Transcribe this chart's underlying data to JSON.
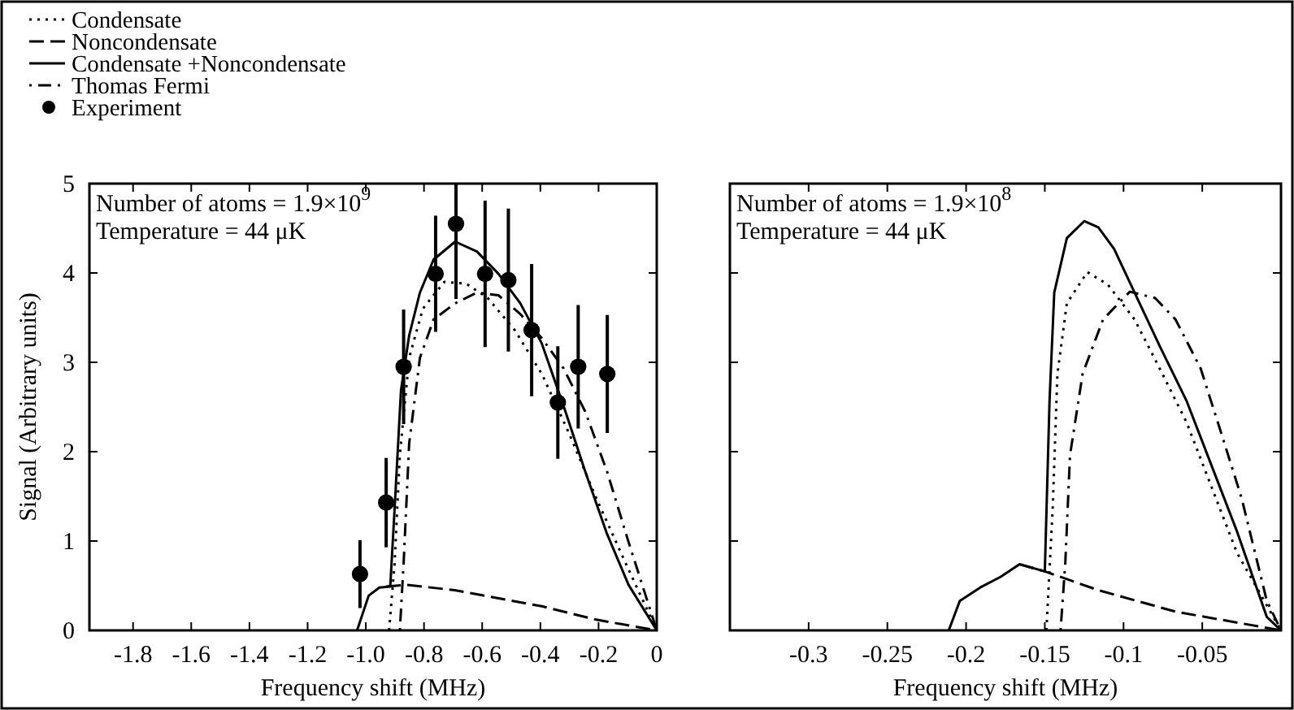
{
  "chart_data": [
    {
      "type": "line",
      "xlabel": "Frequency shift (MHz)",
      "ylabel": "Signal (Arbitrary units)",
      "xlim": [
        -1.95,
        0
      ],
      "ylim": [
        0,
        5
      ],
      "xticks": [
        -1.8,
        -1.6,
        -1.4,
        -1.2,
        {
          "value": -1,
          "label": "-1.0"
        },
        -0.8,
        -0.6,
        -0.4,
        -0.2,
        0
      ],
      "yticks": [
        0,
        1,
        2,
        3,
        4,
        5
      ],
      "legend": "top left",
      "annotations": [
        "Number of atoms = 1.9×10$^{9}$",
        "Temperature = 44 μK"
      ],
      "series": [
        {
          "name": "Condensate",
          "color": "#000000",
          "line_style": "dotted",
          "x": [
            -0.92,
            -0.901,
            -0.883,
            -0.851,
            -0.804,
            -0.73,
            -0.655,
            -0.581,
            -0.488,
            -0.395,
            -0.302,
            -0.208,
            -0.115,
            0
          ],
          "values": [
            0,
            0.75,
            1.96,
            3.05,
            3.6,
            3.9,
            3.88,
            3.72,
            3.36,
            2.87,
            2.21,
            1.48,
            0.81,
            0
          ]
        },
        {
          "name": "Noncondensate",
          "color": "#000000",
          "line_style": "dashed",
          "x": [
            -0.93,
            -0.86,
            -0.695,
            -0.395,
            -0.208,
            0
          ],
          "values": [
            0.49,
            0.51,
            0.45,
            0.27,
            0.12,
            0
          ]
        },
        {
          "name": "Condensate +Noncondensate",
          "color": "#000000",
          "line_style": "solid",
          "x": [
            -1.03,
            -0.99,
            -0.953,
            -0.916,
            -0.901,
            -0.879,
            -0.851,
            -0.814,
            -0.767,
            -0.693,
            -0.618,
            -0.544,
            -0.469,
            -0.395,
            -0.32,
            -0.246,
            -0.171,
            -0.097,
            0
          ],
          "values": [
            0,
            0.39,
            0.48,
            0.49,
            1.36,
            2.69,
            3.3,
            3.78,
            4.15,
            4.35,
            4.24,
            3.99,
            3.66,
            3.21,
            2.51,
            1.78,
            1.08,
            0.51,
            0
          ]
        },
        {
          "name": "Thomas Fermi",
          "color": "#000000",
          "line_style": "dashdot",
          "x": [
            -0.883,
            -0.87,
            -0.851,
            -0.814,
            -0.767,
            -0.693,
            -0.618,
            -0.544,
            -0.469,
            -0.395,
            -0.32,
            -0.246,
            -0.171,
            -0.097,
            0
          ],
          "values": [
            0,
            0.75,
            2.09,
            3.05,
            3.48,
            3.66,
            3.78,
            3.75,
            3.54,
            3.27,
            2.93,
            2.45,
            1.78,
            0.99,
            0
          ]
        },
        {
          "name": "Experiment",
          "type": "scatter",
          "marker": "circle",
          "color": "#000000",
          "x": [
            -1.02,
            -0.93,
            -0.87,
            -0.76,
            -0.69,
            -0.59,
            -0.51,
            -0.43,
            -0.34,
            -0.27,
            -0.17
          ],
          "values": [
            0.63,
            1.43,
            2.95,
            3.99,
            4.55,
            3.99,
            3.92,
            3.36,
            2.55,
            2.95,
            2.87
          ],
          "errors": [
            0.38,
            0.5,
            0.64,
            0.65,
            [
              3.71,
              5
            ],
            0.82,
            0.8,
            0.74,
            0.63,
            0.69,
            0.66
          ]
        }
      ]
    },
    {
      "type": "line",
      "xlabel": "Frequency shift (MHz)",
      "xlim": [
        -0.35,
        0
      ],
      "ylim": [
        0,
        5
      ],
      "xticks": [
        -0.3,
        -0.25,
        -0.2,
        -0.15,
        -0.1,
        -0.05
      ],
      "yticks": [
        0,
        1,
        2,
        3,
        4,
        5
      ],
      "tick_labels": "x",
      "annotations": [
        "Number of atoms = 1.9×10$^{8}$",
        "Temperature = 44 μK"
      ],
      "series": [
        {
          "color": "#000000",
          "line_style": "dotted",
          "x": [
            -0.149,
            -0.145,
            -0.142,
            -0.136,
            -0.123,
            -0.11,
            -0.093,
            -0.077,
            -0.06,
            -0.044,
            -0.028,
            0
          ],
          "values": [
            0,
            1.36,
            2.87,
            3.66,
            4.01,
            3.87,
            3.48,
            2.93,
            2.33,
            1.6,
            0.87,
            0
          ]
        },
        {
          "color": "#000000",
          "line_style": "dashed",
          "x": [
            -0.166,
            -0.15,
            -0.116,
            -0.067,
            0
          ],
          "values": [
            0.74,
            0.66,
            0.45,
            0.21,
            0
          ]
        },
        {
          "color": "#000000",
          "line_style": "solid",
          "x": [
            -0.211,
            -0.204,
            -0.191,
            -0.178,
            -0.166,
            -0.15,
            -0.147,
            -0.144,
            -0.136,
            -0.125,
            -0.116,
            -0.106,
            -0.093,
            -0.077,
            -0.06,
            -0.044,
            -0.028,
            -0.009,
            0
          ],
          "values": [
            0,
            0.33,
            0.48,
            0.6,
            0.74,
            0.66,
            2.57,
            3.78,
            4.39,
            4.58,
            4.51,
            4.27,
            3.78,
            3.18,
            2.57,
            1.84,
            1.11,
            0.15,
            0
          ]
        },
        {
          "color": "#000000",
          "line_style": "dashdot",
          "x": [
            -0.14,
            -0.137,
            -0.134,
            -0.126,
            -0.113,
            -0.096,
            -0.08,
            -0.067,
            -0.051,
            -0.038,
            -0.025,
            -0.009,
            0
          ],
          "values": [
            0,
            0.75,
            1.96,
            2.87,
            3.48,
            3.79,
            3.72,
            3.48,
            2.93,
            2.21,
            1.48,
            0.33,
            0
          ]
        }
      ]
    }
  ]
}
